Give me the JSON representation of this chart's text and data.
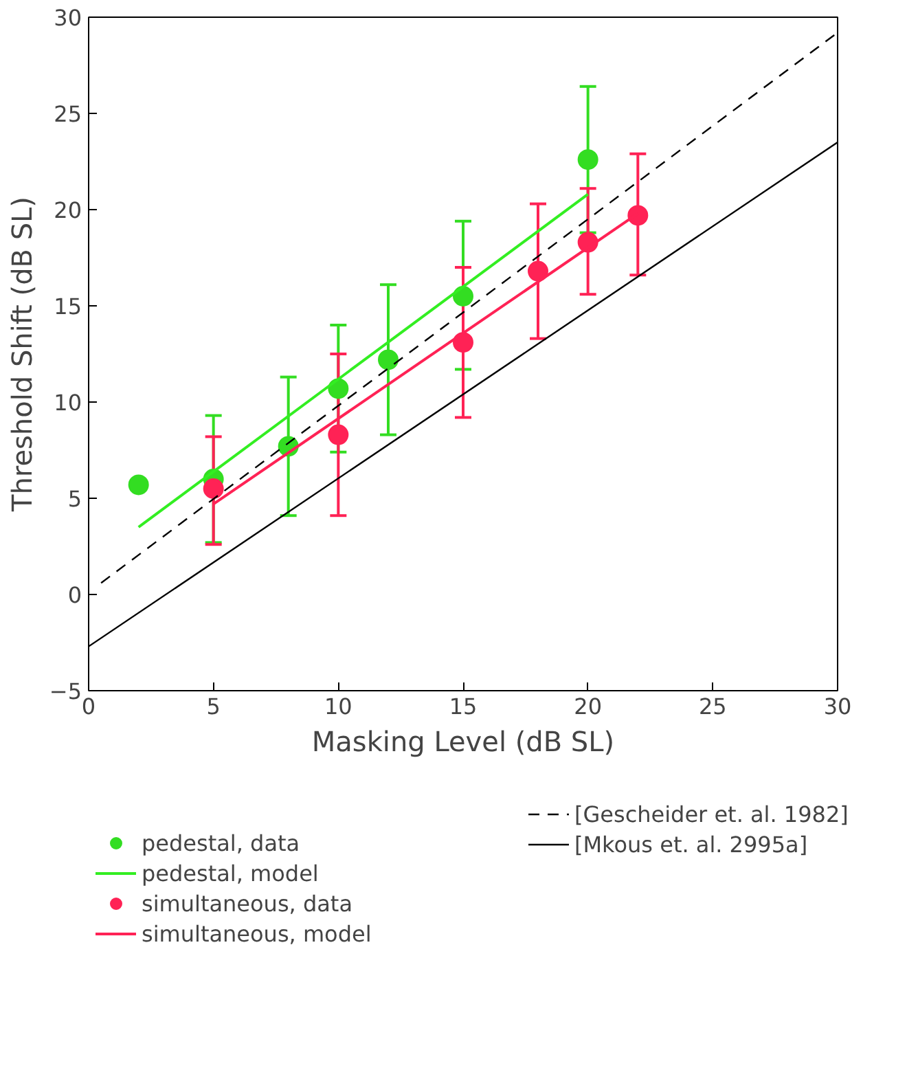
{
  "chart_data": {
    "type": "scatter",
    "xlabel": "Masking Level (dB SL)",
    "ylabel": "Threshold Shift (dB SL)",
    "xlim": [
      0,
      30
    ],
    "ylim": [
      -5,
      30
    ],
    "xticks": [
      0,
      5,
      10,
      15,
      20,
      25,
      30
    ],
    "yticks": [
      -5,
      0,
      5,
      10,
      15,
      20,
      25,
      30
    ],
    "grid": false,
    "legend": "bottom",
    "series": [
      {
        "name": "pedestal, data",
        "marker": "circle",
        "color": "#33dd22",
        "x": [
          2,
          5,
          8,
          10,
          12,
          15,
          20
        ],
        "values": [
          5.7,
          6.0,
          7.7,
          10.7,
          12.2,
          15.5,
          22.6
        ],
        "errors": [
          null,
          [
            2.7,
            9.3
          ],
          [
            4.1,
            11.3
          ],
          [
            7.4,
            14.0
          ],
          [
            8.3,
            16.1
          ],
          [
            11.7,
            19.4
          ],
          [
            18.8,
            26.4
          ]
        ]
      },
      {
        "name": "pedestal, model",
        "type": "line",
        "color": "#33ee22",
        "x": [
          2,
          20
        ],
        "values": [
          3.5,
          20.8
        ]
      },
      {
        "name": "simultaneous, data",
        "marker": "circle",
        "color": "#ff2255",
        "x": [
          5,
          10,
          15,
          18,
          20,
          22
        ],
        "values": [
          5.5,
          8.3,
          13.1,
          16.8,
          18.3,
          19.7
        ],
        "errors": [
          [
            2.6,
            8.2
          ],
          [
            4.1,
            12.5
          ],
          [
            9.2,
            17.0
          ],
          [
            13.3,
            20.3
          ],
          [
            15.6,
            21.1
          ],
          [
            16.6,
            22.9
          ]
        ]
      },
      {
        "name": "simultaneous, model",
        "type": "line",
        "color": "#ff2255",
        "x": [
          5,
          22
        ],
        "values": [
          4.7,
          19.8
        ]
      },
      {
        "name": "[Gescheider et. al. 1982]",
        "type": "line",
        "color": "#000000",
        "line_style": "dashed",
        "x": [
          0.5,
          30
        ],
        "values": [
          0.6,
          29.2
        ]
      },
      {
        "name": "[Mkous et. al. 2995a]",
        "type": "line",
        "color": "#000000",
        "line_style": "solid",
        "x": [
          0,
          30
        ],
        "values": [
          -2.7,
          23.5
        ]
      }
    ]
  }
}
